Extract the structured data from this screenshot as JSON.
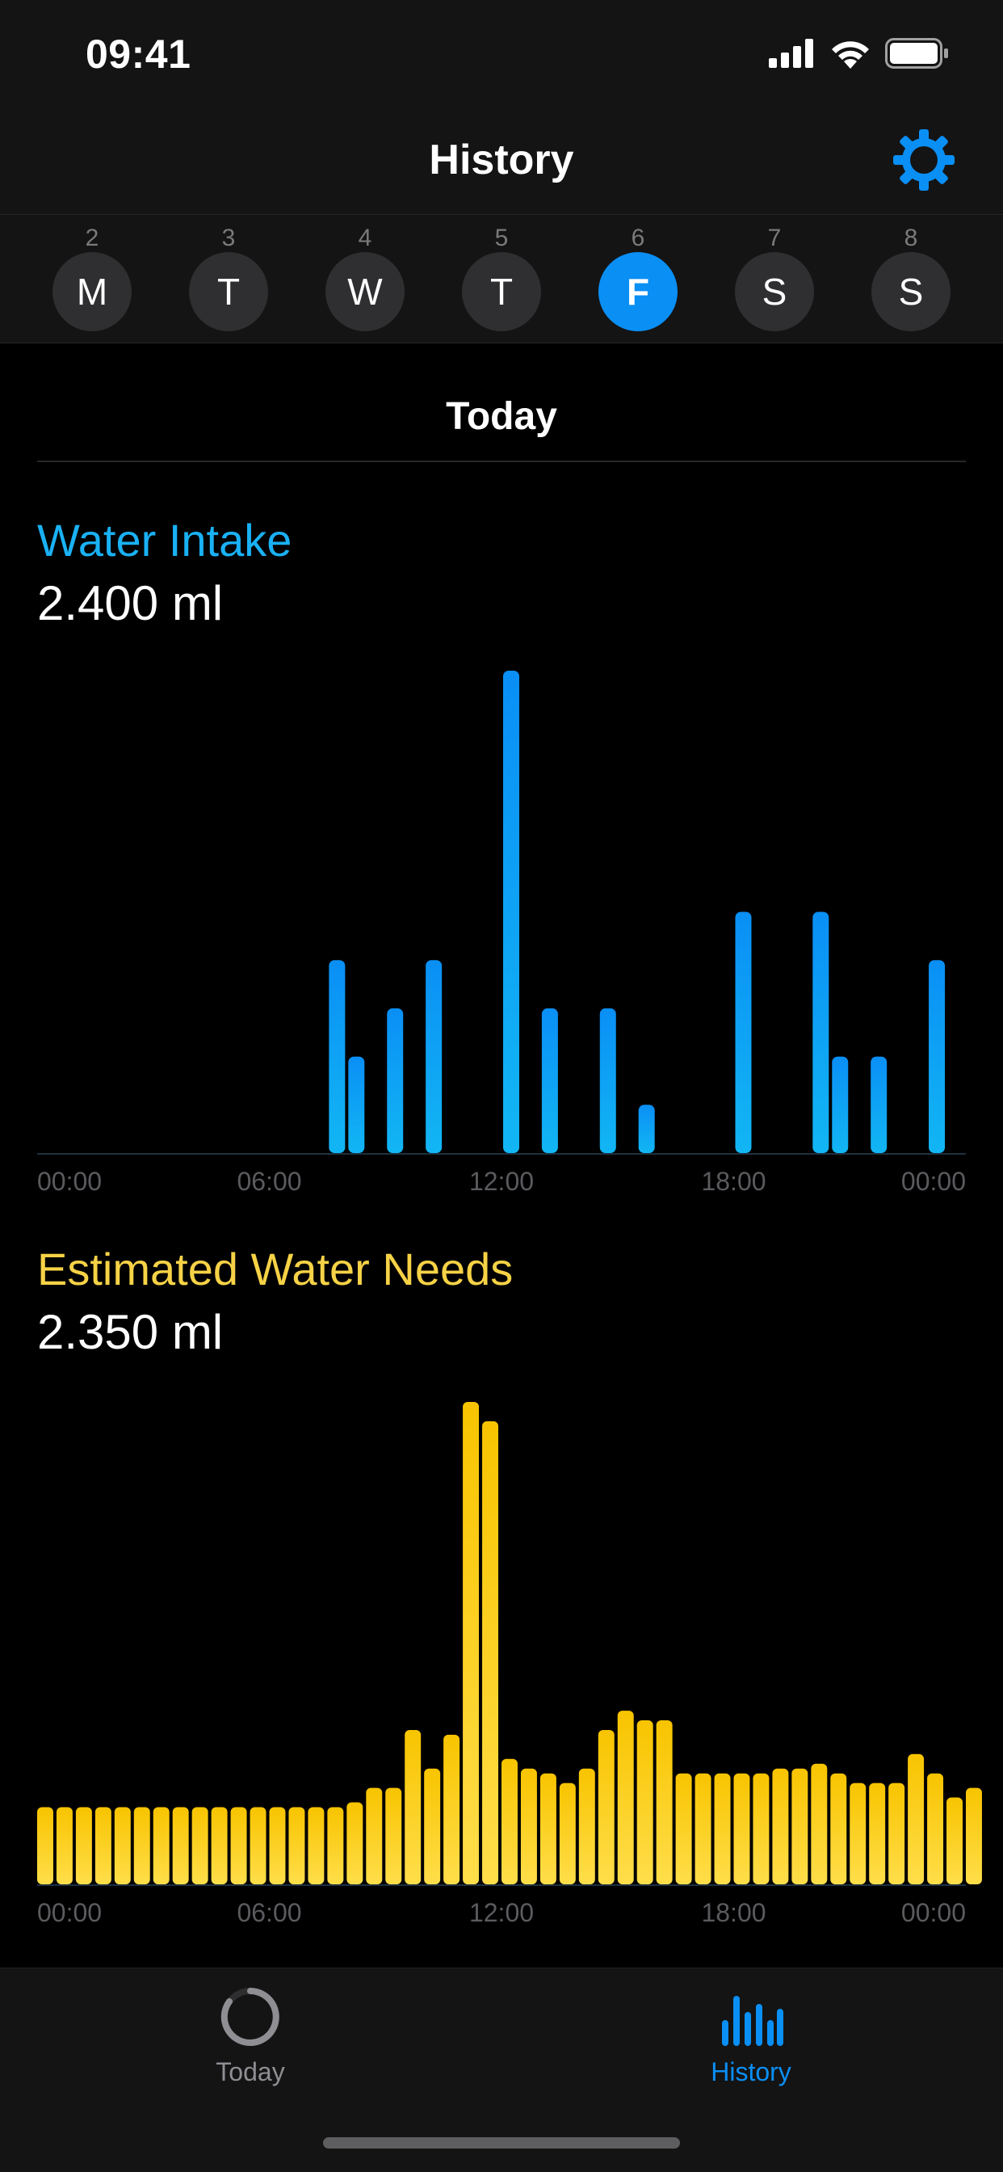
{
  "status_bar": {
    "time": "09:41"
  },
  "nav": {
    "title": "History",
    "settings_icon": "gear-icon"
  },
  "week": {
    "days": [
      {
        "num": "2",
        "letter": "M",
        "selected": false
      },
      {
        "num": "3",
        "letter": "T",
        "selected": false
      },
      {
        "num": "4",
        "letter": "W",
        "selected": false
      },
      {
        "num": "5",
        "letter": "T",
        "selected": false
      },
      {
        "num": "6",
        "letter": "F",
        "selected": true
      },
      {
        "num": "7",
        "letter": "S",
        "selected": false
      },
      {
        "num": "8",
        "letter": "S",
        "selected": false
      }
    ]
  },
  "section": {
    "title": "Today"
  },
  "intake": {
    "label": "Water Intake",
    "value": "2.400 ml"
  },
  "needs": {
    "label": "Estimated Water Needs",
    "value": "2.350 ml"
  },
  "colors": {
    "accent": "#0a8ff5",
    "intake_label": "#1ab1f5",
    "needs_label": "#f6d246",
    "needs_bar": "#fac800"
  },
  "chart_data": [
    {
      "type": "bar",
      "name": "intake",
      "x_ticks": [
        "00:00",
        "06:00",
        "12:00",
        "18:00",
        "00:00"
      ],
      "x_range": [
        0,
        24
      ],
      "y_range": [
        0,
        500
      ],
      "points": [
        {
          "x": 7.75,
          "y": 200
        },
        {
          "x": 8.25,
          "y": 100
        },
        {
          "x": 9.25,
          "y": 150
        },
        {
          "x": 10.25,
          "y": 200
        },
        {
          "x": 12.25,
          "y": 500
        },
        {
          "x": 13.25,
          "y": 150
        },
        {
          "x": 14.75,
          "y": 150
        },
        {
          "x": 15.75,
          "y": 50
        },
        {
          "x": 18.25,
          "y": 250
        },
        {
          "x": 20.25,
          "y": 250
        },
        {
          "x": 20.75,
          "y": 100
        },
        {
          "x": 21.75,
          "y": 100
        },
        {
          "x": 23.25,
          "y": 200
        }
      ]
    },
    {
      "type": "bar",
      "name": "needs",
      "x_ticks": [
        "00:00",
        "06:00",
        "12:00",
        "18:00",
        "00:00"
      ],
      "x_range": [
        0,
        24
      ],
      "y_range": [
        0,
        100
      ],
      "bin_hours": 0.5,
      "values": [
        16,
        16,
        16,
        16,
        16,
        16,
        16,
        16,
        16,
        16,
        16,
        16,
        16,
        16,
        16,
        16,
        17,
        20,
        20,
        32,
        24,
        31,
        100,
        96,
        26,
        24,
        23,
        21,
        24,
        32,
        36,
        34,
        34,
        23,
        23,
        23,
        23,
        23,
        24,
        24,
        25,
        23,
        21,
        21,
        21,
        27,
        23,
        18,
        20
      ]
    }
  ],
  "tabs": [
    {
      "label": "Today",
      "icon": "ring-icon",
      "active": false
    },
    {
      "label": "History",
      "icon": "bar-chart-icon",
      "active": true
    }
  ]
}
